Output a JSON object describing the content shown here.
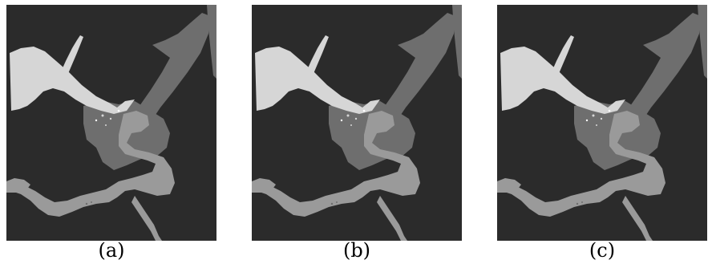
{
  "figure": {
    "background_color": "#2b2b2b",
    "region_colors": {
      "light": "#d6d6d6",
      "mid": "#9a9a9a",
      "dark_mid": "#6e6e6e"
    },
    "panels": [
      {
        "caption": "(a)"
      },
      {
        "caption": "(b)"
      },
      {
        "caption": "(c)"
      }
    ]
  }
}
